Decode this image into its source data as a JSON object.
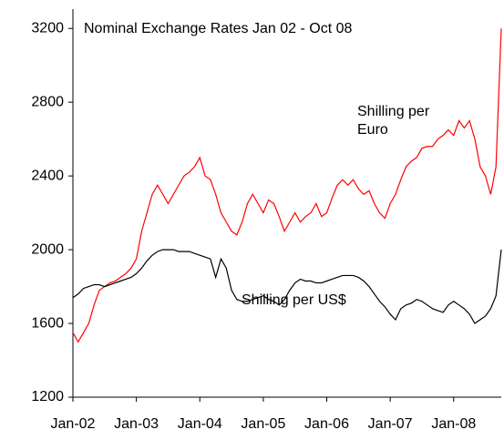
{
  "chart_data": {
    "type": "line",
    "title": "Nominal Exchange Rates Jan 02 - Oct 08",
    "categories": [
      "Jan-02",
      null,
      null,
      null,
      null,
      null,
      null,
      null,
      null,
      null,
      null,
      null,
      "Jan-03",
      null,
      null,
      null,
      null,
      null,
      null,
      null,
      null,
      null,
      null,
      null,
      "Jan-04",
      null,
      null,
      null,
      null,
      null,
      null,
      null,
      null,
      null,
      null,
      null,
      "Jan-05",
      null,
      null,
      null,
      null,
      null,
      null,
      null,
      null,
      null,
      null,
      null,
      "Jan-06",
      null,
      null,
      null,
      null,
      null,
      null,
      null,
      null,
      null,
      null,
      null,
      "Jan-07",
      null,
      null,
      null,
      null,
      null,
      null,
      null,
      null,
      null,
      null,
      null,
      "Jan-08",
      null,
      null,
      null,
      null,
      null,
      null,
      null,
      null,
      null
    ],
    "series": [
      {
        "name": "Shilling per Euro",
        "color": "#ff0000",
        "values": [
          1550,
          1500,
          1550,
          1600,
          1700,
          1780,
          1800,
          1820,
          1830,
          1850,
          1870,
          1900,
          1950,
          2100,
          2200,
          2300,
          2350,
          2300,
          2250,
          2300,
          2350,
          2400,
          2420,
          2450,
          2500,
          2400,
          2380,
          2300,
          2200,
          2150,
          2100,
          2080,
          2150,
          2250,
          2300,
          2250,
          2200,
          2270,
          2250,
          2180,
          2100,
          2150,
          2200,
          2150,
          2180,
          2200,
          2250,
          2180,
          2200,
          2280,
          2350,
          2380,
          2350,
          2380,
          2330,
          2300,
          2320,
          2250,
          2200,
          2170,
          2250,
          2300,
          2380,
          2450,
          2480,
          2500,
          2550,
          2560,
          2560,
          2600,
          2620,
          2650,
          2620,
          2700,
          2660,
          2700,
          2600,
          2450,
          2400,
          2300,
          2450,
          3200
        ]
      },
      {
        "name": "Shilling per US$",
        "color": "#000000",
        "values": [
          1740,
          1760,
          1790,
          1800,
          1810,
          1810,
          1800,
          1810,
          1820,
          1830,
          1840,
          1850,
          1870,
          1900,
          1940,
          1970,
          1990,
          2000,
          2000,
          2000,
          1990,
          1990,
          1990,
          1980,
          1970,
          1960,
          1950,
          1850,
          1950,
          1900,
          1780,
          1730,
          1720,
          1720,
          1730,
          1740,
          1750,
          1730,
          1720,
          1700,
          1730,
          1780,
          1820,
          1840,
          1830,
          1830,
          1820,
          1820,
          1830,
          1840,
          1850,
          1860,
          1860,
          1860,
          1850,
          1830,
          1800,
          1760,
          1720,
          1690,
          1650,
          1620,
          1680,
          1700,
          1710,
          1730,
          1720,
          1700,
          1680,
          1670,
          1660,
          1700,
          1720,
          1700,
          1680,
          1650,
          1600,
          1620,
          1640,
          1680,
          1750,
          2000
        ]
      }
    ],
    "ylim": [
      1200,
      3300
    ],
    "yticks": [
      1200,
      1600,
      2000,
      2400,
      2800,
      3200
    ]
  }
}
